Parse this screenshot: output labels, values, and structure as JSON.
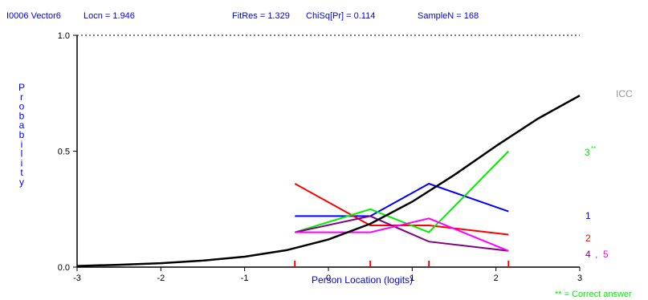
{
  "header": {
    "item": "I0006 Vector6",
    "locn": "Locn = 1.946",
    "fitres": "FitRes = 1.329",
    "chisq": "ChiSq[Pr] = 0.114",
    "samplen": "SampleN = 168"
  },
  "chart_data": {
    "type": "line",
    "xlabel": "Person Location (logits)",
    "ylabel": "Probability",
    "xlim": [
      -3,
      3
    ],
    "ylim": [
      0,
      1
    ],
    "x_ticks": [
      "-3",
      "-2",
      "-1",
      "0",
      "1",
      "2",
      "3"
    ],
    "y_ticks": [
      "0.0",
      "0.5",
      "1.0"
    ],
    "grid": false,
    "icc": {
      "label": "ICC",
      "color": "#000000",
      "x": [
        -3.0,
        -2.5,
        -2.0,
        -1.5,
        -1.0,
        -0.5,
        0.0,
        0.5,
        1.0,
        1.5,
        2.0,
        2.5,
        3.0
      ],
      "y": [
        0.005,
        0.01,
        0.017,
        0.028,
        0.045,
        0.073,
        0.119,
        0.187,
        0.282,
        0.397,
        0.522,
        0.64,
        0.74
      ]
    },
    "class_intervals_x": [
      -0.4,
      0.5,
      1.2,
      2.15
    ],
    "series": [
      {
        "name": "1",
        "color": "#0000ff",
        "y": [
          0.22,
          0.22,
          0.36,
          0.24
        ]
      },
      {
        "name": "2",
        "color": "#ff0000",
        "y": [
          0.36,
          0.18,
          0.18,
          0.14
        ]
      },
      {
        "name": "3",
        "color": "#00ee00",
        "y": [
          0.15,
          0.25,
          0.15,
          0.5
        ]
      },
      {
        "name": "4",
        "color": "#800080",
        "y": [
          0.15,
          0.22,
          0.11,
          0.07
        ]
      },
      {
        "name": "5",
        "color": "#ff00ff",
        "y": [
          0.15,
          0.15,
          0.21,
          0.07
        ]
      }
    ],
    "legend": {
      "icc": "ICC",
      "s3": "3",
      "s3_star": "**",
      "s1": "1",
      "s2": "2",
      "s4": "4",
      "s45_sep": ",",
      "s5": "5"
    },
    "footnote": "** = Correct answer",
    "dotted_line_y": 1.0
  }
}
